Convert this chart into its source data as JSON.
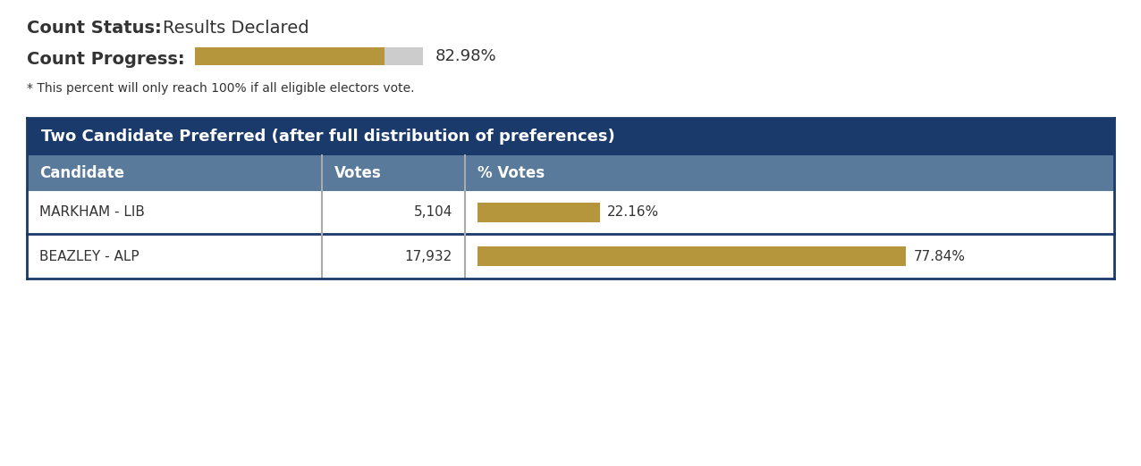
{
  "count_status_label": "Count Status:",
  "count_status_value": "Results Declared",
  "count_progress_label": "Count Progress:",
  "count_progress_pct": 82.98,
  "count_progress_note": "* This percent will only reach 100% if all eligible electors vote.",
  "table_title": "Two Candidate Preferred (after full distribution of preferences)",
  "col_headers": [
    "Candidate",
    "Votes",
    "% Votes"
  ],
  "candidates": [
    "MARKHAM - LIB",
    "BEAZLEY - ALP"
  ],
  "votes": [
    "5,104",
    "17,932"
  ],
  "pct_votes": [
    22.16,
    77.84
  ],
  "pct_labels": [
    "22.16%",
    "77.84%"
  ],
  "bg_color": "#ffffff",
  "table_header_bg": "#1a3a6b",
  "col_header_bg": "#5a7a9b",
  "row_bg": "#ffffff",
  "bar_color": "#b5963c",
  "progress_bar_filled": "#b5963c",
  "progress_bar_empty": "#cccccc",
  "table_header_text": "#ffffff",
  "col_header_text": "#ffffff",
  "row_text": "#333333",
  "divider_color": "#1a3a6b",
  "separator_color": "#aaaaaa"
}
